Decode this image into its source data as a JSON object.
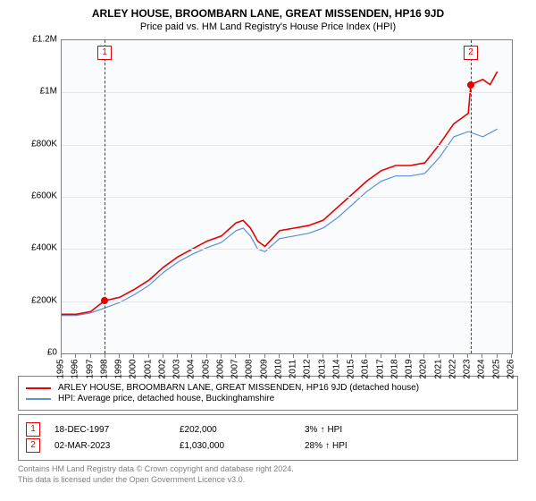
{
  "title": "ARLEY HOUSE, BROOMBARN LANE, GREAT MISSENDEN, HP16 9JD",
  "subtitle": "Price paid vs. HM Land Registry's House Price Index (HPI)",
  "chart": {
    "type": "line",
    "background_color": "#fafbfc",
    "border_color": "#808080",
    "grid_color": "#e5e5e5",
    "ylim": [
      0,
      1200000
    ],
    "ytick_step": 200000,
    "yticks": [
      {
        "v": 0,
        "label": "£0"
      },
      {
        "v": 200000,
        "label": "£200K"
      },
      {
        "v": 400000,
        "label": "£400K"
      },
      {
        "v": 600000,
        "label": "£600K"
      },
      {
        "v": 800000,
        "label": "£800K"
      },
      {
        "v": 1000000,
        "label": "£1M"
      },
      {
        "v": 1200000,
        "label": "£1.2M"
      }
    ],
    "xlim": [
      1995,
      2026
    ],
    "xtick_step": 1,
    "xticks": [
      1995,
      1996,
      1997,
      1998,
      1999,
      2000,
      2001,
      2002,
      2003,
      2004,
      2005,
      2006,
      2007,
      2008,
      2009,
      2010,
      2011,
      2012,
      2013,
      2014,
      2015,
      2016,
      2017,
      2018,
      2019,
      2020,
      2021,
      2022,
      2023,
      2024,
      2025,
      2026
    ],
    "label_fontsize": 10,
    "series": [
      {
        "name": "ARLEY HOUSE, BROOMBARN LANE, GREAT MISSENDEN, HP16 9JD (detached house)",
        "color": "#e60000",
        "line_width": 1.6,
        "data": [
          [
            1995.0,
            150000
          ],
          [
            1996.0,
            150000
          ],
          [
            1997.0,
            160000
          ],
          [
            1997.96,
            202000
          ],
          [
            1999.0,
            215000
          ],
          [
            2000.0,
            245000
          ],
          [
            2001.0,
            280000
          ],
          [
            2002.0,
            330000
          ],
          [
            2003.0,
            370000
          ],
          [
            2004.0,
            400000
          ],
          [
            2005.0,
            430000
          ],
          [
            2006.0,
            450000
          ],
          [
            2007.0,
            500000
          ],
          [
            2007.5,
            510000
          ],
          [
            2008.0,
            480000
          ],
          [
            2008.5,
            430000
          ],
          [
            2009.0,
            410000
          ],
          [
            2010.0,
            470000
          ],
          [
            2011.0,
            480000
          ],
          [
            2012.0,
            490000
          ],
          [
            2013.0,
            510000
          ],
          [
            2014.0,
            560000
          ],
          [
            2015.0,
            610000
          ],
          [
            2016.0,
            660000
          ],
          [
            2017.0,
            700000
          ],
          [
            2018.0,
            720000
          ],
          [
            2019.0,
            720000
          ],
          [
            2020.0,
            730000
          ],
          [
            2021.0,
            800000
          ],
          [
            2022.0,
            880000
          ],
          [
            2023.0,
            920000
          ],
          [
            2023.17,
            1030000
          ],
          [
            2024.0,
            1050000
          ],
          [
            2024.5,
            1030000
          ],
          [
            2025.0,
            1080000
          ]
        ]
      },
      {
        "name": "HPI: Average price, detached house, Buckinghamshire",
        "color": "#5b8fd6",
        "line_width": 1.2,
        "data": [
          [
            1995.0,
            145000
          ],
          [
            1996.0,
            145000
          ],
          [
            1997.0,
            155000
          ],
          [
            1998.0,
            175000
          ],
          [
            1999.0,
            195000
          ],
          [
            2000.0,
            225000
          ],
          [
            2001.0,
            260000
          ],
          [
            2002.0,
            310000
          ],
          [
            2003.0,
            350000
          ],
          [
            2004.0,
            380000
          ],
          [
            2005.0,
            405000
          ],
          [
            2006.0,
            425000
          ],
          [
            2007.0,
            470000
          ],
          [
            2007.5,
            480000
          ],
          [
            2008.0,
            450000
          ],
          [
            2008.5,
            400000
          ],
          [
            2009.0,
            390000
          ],
          [
            2010.0,
            440000
          ],
          [
            2011.0,
            450000
          ],
          [
            2012.0,
            460000
          ],
          [
            2013.0,
            480000
          ],
          [
            2014.0,
            520000
          ],
          [
            2015.0,
            570000
          ],
          [
            2016.0,
            620000
          ],
          [
            2017.0,
            660000
          ],
          [
            2018.0,
            680000
          ],
          [
            2019.0,
            680000
          ],
          [
            2020.0,
            690000
          ],
          [
            2021.0,
            750000
          ],
          [
            2022.0,
            830000
          ],
          [
            2023.0,
            850000
          ],
          [
            2024.0,
            830000
          ],
          [
            2025.0,
            860000
          ]
        ]
      }
    ],
    "markers": [
      {
        "id": "1",
        "x": 1997.96,
        "y": 202000,
        "line_color": "#e60000"
      },
      {
        "id": "2",
        "x": 2023.17,
        "y": 1030000,
        "line_color": "#e60000"
      }
    ]
  },
  "legend": {
    "items": [
      {
        "color": "#e60000",
        "label": "ARLEY HOUSE, BROOMBARN LANE, GREAT MISSENDEN, HP16 9JD (detached house)"
      },
      {
        "color": "#5b8fd6",
        "label": "HPI: Average price, detached house, Buckinghamshire"
      }
    ]
  },
  "transactions": [
    {
      "badge": "1",
      "date": "18-DEC-1997",
      "price": "£202,000",
      "hpi_pct": "3%",
      "hpi_dir": "↑",
      "hpi_label": "HPI"
    },
    {
      "badge": "2",
      "date": "02-MAR-2023",
      "price": "£1,030,000",
      "hpi_pct": "28%",
      "hpi_dir": "↑",
      "hpi_label": "HPI"
    }
  ],
  "footer": {
    "line1": "Contains HM Land Registry data © Crown copyright and database right 2024.",
    "line2": "This data is licensed under the Open Government Licence v3.0."
  },
  "colors": {
    "marker_badge_border": "#e60000",
    "marker_badge_text": "#e60000",
    "footer_text": "#808080"
  }
}
